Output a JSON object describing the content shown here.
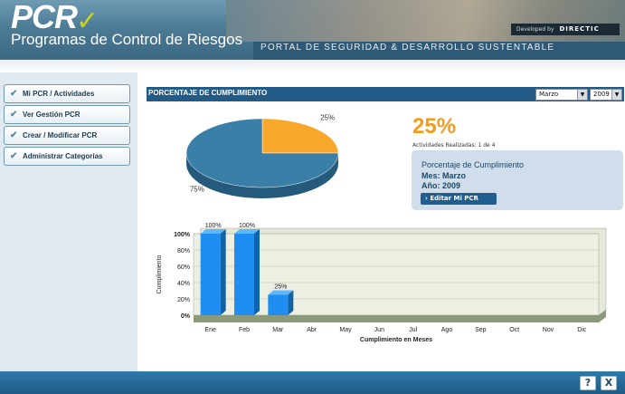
{
  "header": {
    "logo_text": "PCR",
    "subtitle": "Programas de Control de Riesgos",
    "portal": "PORTAL DE SEGURIDAD & DESARROLLO SUSTENTABLE",
    "developed_by": "Developed by",
    "developer": "DIRECTIC"
  },
  "sidebar": {
    "items": [
      {
        "label": "Mi PCR / Actividades"
      },
      {
        "label": "Ver Gestión PCR"
      },
      {
        "label": "Crear / Modificar PCR"
      },
      {
        "label": "Administrar Categorías"
      }
    ]
  },
  "panel": {
    "title": "PORCENTAJE DE CUMPLIMIENTO",
    "month_select": "Marzo",
    "year_select": "2009"
  },
  "summary": {
    "big_percent": "25%",
    "realizadas": "Actividades Realizadas: 1 de 4",
    "box_title": "Porcentaje de Cumplimiento",
    "mes": "Mes: Marzo",
    "anio": "Año: 2009",
    "edit_button": "› Editar Mi PCR"
  },
  "colors": {
    "accent": "#f39c19",
    "pie_main": "#3a7fa8",
    "bar": "#1e8ff0",
    "panel_bar": "#245b86"
  },
  "chart_data": [
    {
      "type": "pie",
      "slices": [
        {
          "label": "25%",
          "value": 25,
          "color": "#f7a82b"
        },
        {
          "label": "75%",
          "value": 75,
          "color": "#3a7fa8"
        }
      ]
    },
    {
      "type": "bar",
      "categories": [
        "Ene",
        "Feb",
        "Mar",
        "Abr",
        "May",
        "Jun",
        "Jul",
        "Ago",
        "Sep",
        "Oct",
        "Nov",
        "Dic"
      ],
      "values": [
        100,
        100,
        25,
        null,
        null,
        null,
        null,
        null,
        null,
        null,
        null,
        null
      ],
      "data_labels": [
        "100%",
        "100%",
        "25%",
        "",
        "",
        "",
        "",
        "",
        "",
        "",
        "",
        ""
      ],
      "yticks": [
        "0%",
        "20%",
        "40%",
        "60%",
        "80%",
        "100%"
      ],
      "ylim": [
        0,
        100
      ],
      "xlabel": "Cumplimiento en Meses",
      "ylabel": "Cumplimiento",
      "grid": true
    }
  ],
  "footer": {
    "help": "?",
    "close": "X"
  }
}
